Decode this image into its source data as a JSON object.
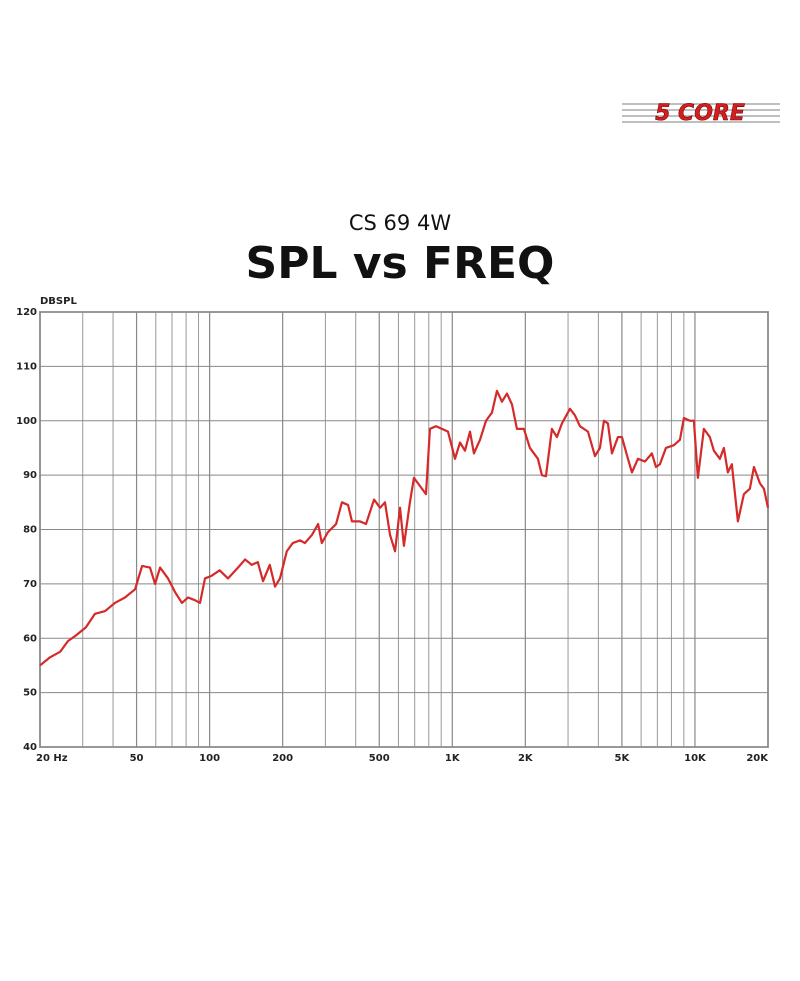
{
  "logo": "5 CORE",
  "chart_data": {
    "type": "line",
    "subtitle": "CS 69 4W",
    "title": "SPL vs FREQ",
    "y_label": "DBSPL",
    "color": "#d42a2a",
    "xscale": "log",
    "grid": true,
    "xlim": [
      20,
      20000
    ],
    "ylim": [
      40,
      120
    ],
    "yticks": [
      40,
      50,
      60,
      70,
      80,
      90,
      100,
      110,
      120
    ],
    "xticks": [
      {
        "value": 20,
        "label": "20 Hz"
      },
      50,
      100,
      200,
      500,
      {
        "value": 1000,
        "label": "1K"
      },
      {
        "value": 2000,
        "label": "2K"
      },
      {
        "value": 5000,
        "label": "5K"
      },
      {
        "value": 10000,
        "label": "10K"
      },
      {
        "value": 20000,
        "label": "20K"
      }
    ],
    "xgrid": [
      30,
      40,
      60,
      70,
      80,
      90,
      300,
      400,
      600,
      700,
      800,
      900,
      3000,
      4000,
      6000,
      7000,
      8000,
      9000
    ],
    "x": [
      20,
      22,
      24.2,
      26.1,
      28.1,
      30.9,
      33.7,
      37.1,
      40.7,
      44.8,
      49.3,
      52.7,
      56.8,
      59.6,
      62.5,
      67.4,
      72,
      76.9,
      81.5,
      87,
      91.3,
      95.7,
      102,
      110,
      119,
      131,
      140,
      149,
      158,
      166,
      177,
      186,
      195,
      208,
      220,
      236,
      247,
      264,
      280,
      290,
      307,
      332,
      351,
      372,
      386,
      417,
      441,
      476,
      504,
      528,
      554,
      581,
      609,
      632,
      669,
      695,
      736,
      779,
      809,
      857,
      907,
      960,
      1026,
      1076,
      1128,
      1183,
      1228,
      1301,
      1377,
      1457,
      1528,
      1602,
      1680,
      1762,
      1847,
      1973,
      2089,
      2254,
      2341,
      2432,
      2574,
      2699,
      2830,
      3054,
      3202,
      3357,
      3623,
      3872,
      4059,
      4216,
      4379,
      4549,
      4815,
      5001,
      5296,
      5500,
      5823,
      6222,
      6648,
      6905,
      7172,
      7592,
      8190,
      8670,
      9005,
      9532,
      9900,
      10284,
      10884,
      11519,
      11965,
      12667,
      13157,
      13664,
      14193,
      15030,
      15910,
      16840,
      17500,
      18520,
      19240,
      20000
    ],
    "values": [
      55,
      56.5,
      57.5,
      59.5,
      60.5,
      62,
      64.5,
      65,
      66.5,
      67.5,
      69,
      73.3,
      73,
      70,
      73,
      71,
      68.5,
      66.5,
      67.5,
      67,
      66.5,
      71,
      71.5,
      72.5,
      71,
      73,
      74.5,
      73.5,
      74,
      70.5,
      73.5,
      69.5,
      71,
      76,
      77.5,
      78,
      77.5,
      79,
      81,
      77.5,
      79.5,
      81,
      85,
      84.5,
      81.5,
      81.5,
      81,
      85.5,
      84,
      85,
      79,
      76,
      84,
      77,
      85,
      89.5,
      88,
      86.5,
      98.5,
      99,
      98.5,
      98,
      93,
      96,
      94.5,
      98,
      94,
      96.5,
      100,
      101.5,
      105.5,
      103.5,
      105,
      103,
      98.5,
      98.5,
      95,
      93,
      90,
      89.8,
      98.5,
      97,
      99.5,
      102.2,
      101,
      99,
      98,
      93.5,
      95,
      100,
      99.5,
      94,
      97,
      97,
      93,
      90.5,
      93,
      92.5,
      94,
      91.5,
      92,
      95,
      95.5,
      96.5,
      100.5,
      100,
      100,
      89.5,
      98.5,
      97,
      94.5,
      93,
      95,
      90.5,
      92,
      81.5,
      86.5,
      87.5,
      91.5,
      88.5,
      87.5,
      84
    ]
  }
}
